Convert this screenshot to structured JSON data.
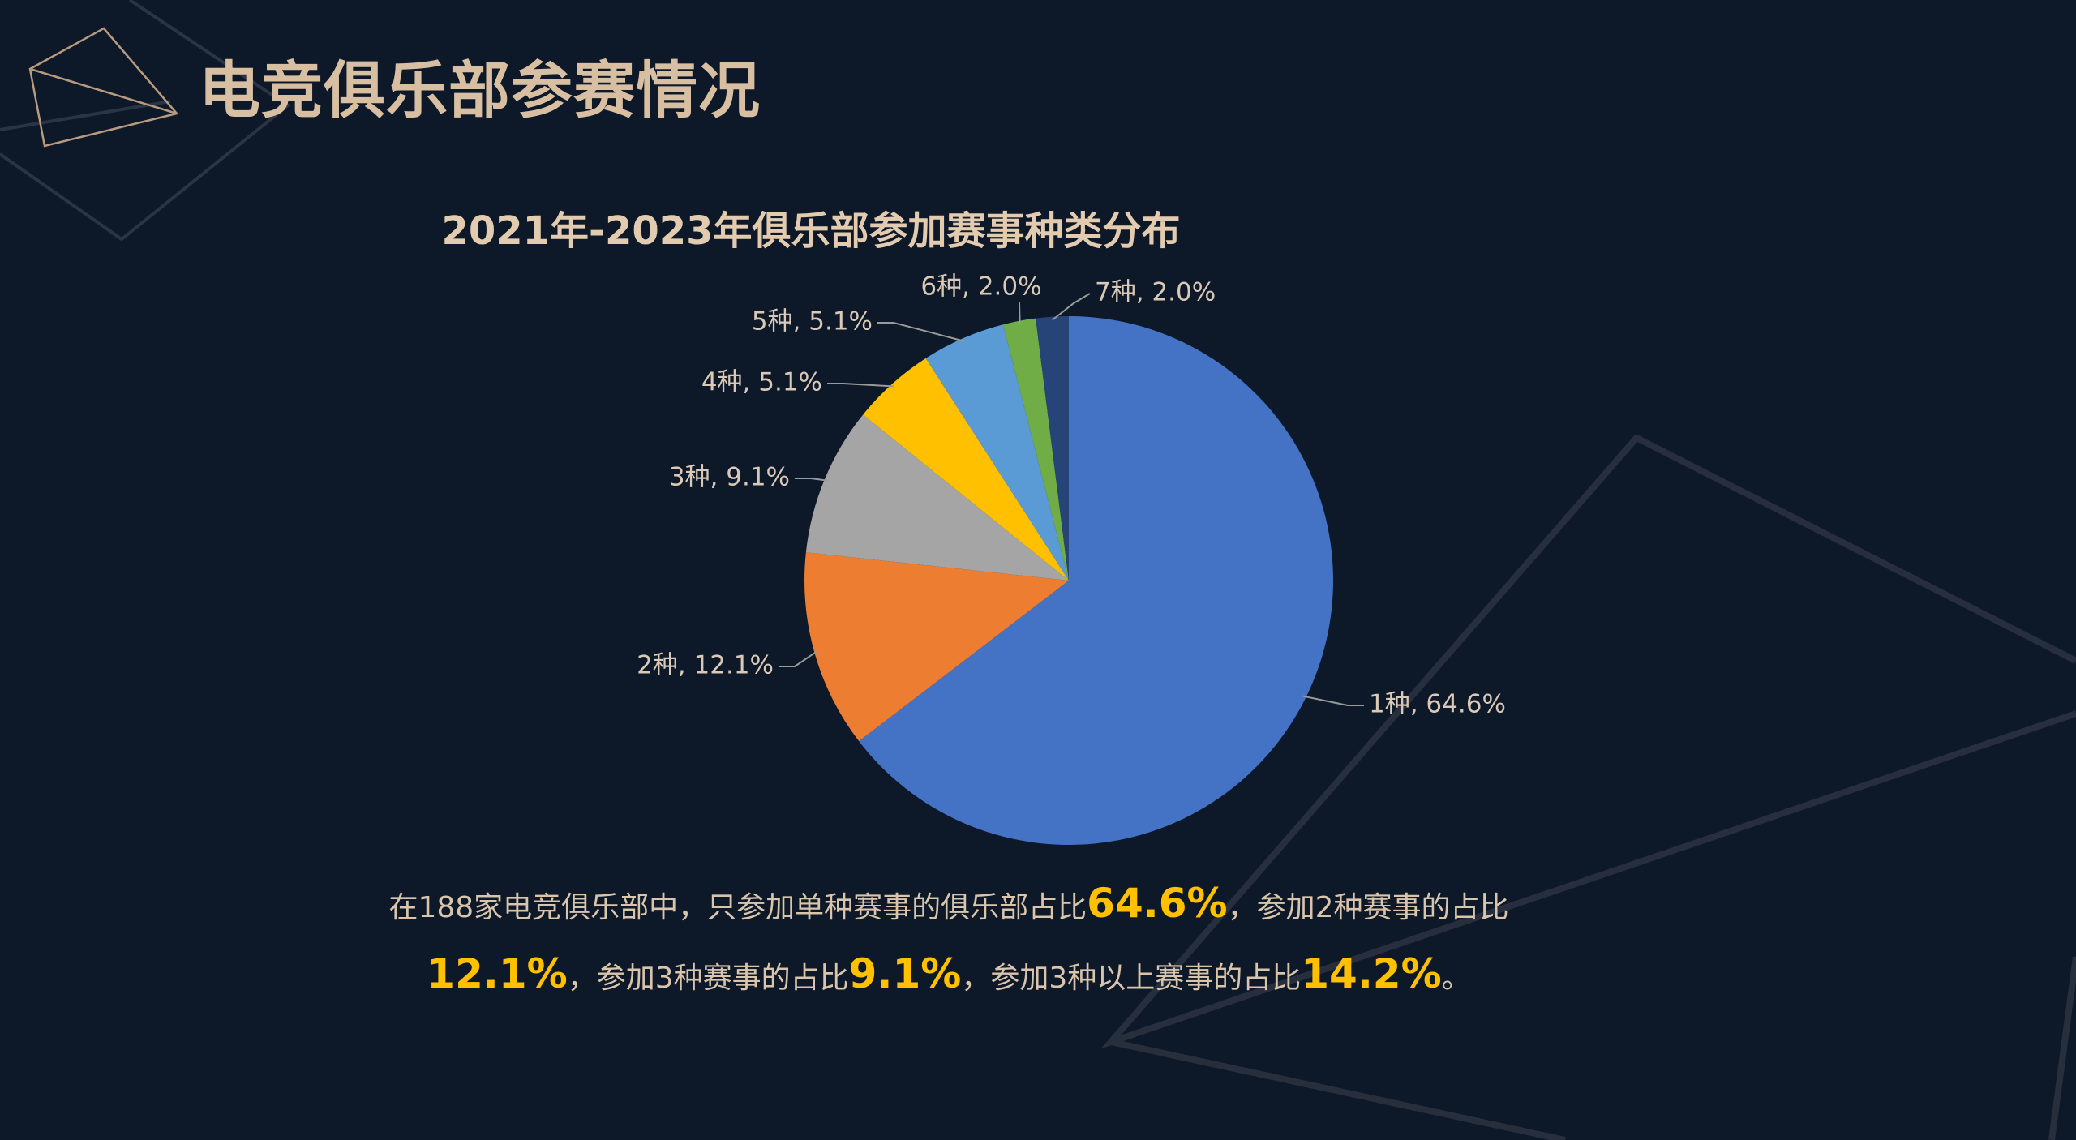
{
  "page": {
    "title": "电竞俱乐部参赛情况",
    "background": "#0d1829",
    "title_color": "#d9bfa2",
    "highlight_color": "#ffc000"
  },
  "chart_data": {
    "type": "pie",
    "title": "2021年-2023年俱乐部参加赛事种类分布",
    "slices": [
      {
        "label": "1种",
        "value": 64.6,
        "value_label": "64.6%",
        "color": "#4472c4"
      },
      {
        "label": "2种",
        "value": 12.1,
        "value_label": "12.1%",
        "color": "#ed7d31"
      },
      {
        "label": "3种",
        "value": 9.1,
        "value_label": "9.1%",
        "color": "#a5a5a5"
      },
      {
        "label": "4种",
        "value": 5.1,
        "value_label": "5.1%",
        "color": "#ffc000"
      },
      {
        "label": "5种",
        "value": 5.1,
        "value_label": "5.1%",
        "color": "#5b9bd5"
      },
      {
        "label": "6种",
        "value": 2.0,
        "value_label": "2.0%",
        "color": "#70ad47"
      },
      {
        "label": "7种",
        "value": 2.0,
        "value_label": "2.0%",
        "color": "#264478"
      }
    ],
    "start_angle_deg": 0,
    "direction": "clockwise",
    "legend": "none",
    "data_labels": "outside-with-leader-lines"
  },
  "summary": {
    "line1_a": "在188家电竞俱乐部中，只参加单种赛事的俱乐部占比",
    "line1_hl": "64.6%",
    "line1_b": "，参加2种赛事的占比",
    "line2_hl1": "12.1%",
    "line2_a": "，参加3种赛事的占比",
    "line2_hl2": "9.1%",
    "line2_b": "，参加3种以上赛事的占比",
    "line2_hl3": "14.2%",
    "line2_c": "。"
  }
}
